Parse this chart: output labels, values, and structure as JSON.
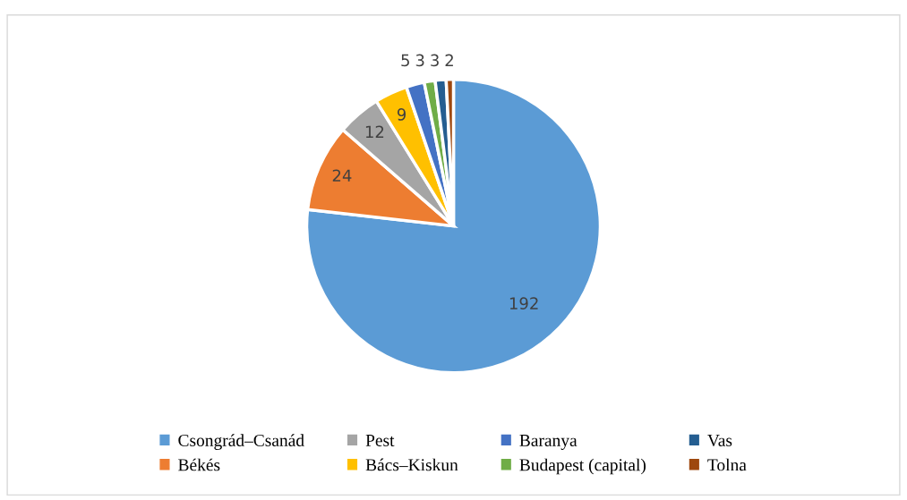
{
  "chart_data": {
    "type": "pie",
    "categories": [
      "Csongrád–Csanád",
      "Békés",
      "Pest",
      "Bács–Kiskun",
      "Baranya",
      "Budapest (capital)",
      "Vas",
      "Tolna"
    ],
    "values": [
      192,
      24,
      12,
      9,
      5,
      3,
      3,
      2
    ],
    "colors": [
      "#5b9bd5",
      "#ed7d31",
      "#a5a5a5",
      "#ffc000",
      "#4472c4",
      "#70ad47",
      "#255e91",
      "#9e480e"
    ],
    "data_labels": true,
    "legend": "bottom"
  }
}
